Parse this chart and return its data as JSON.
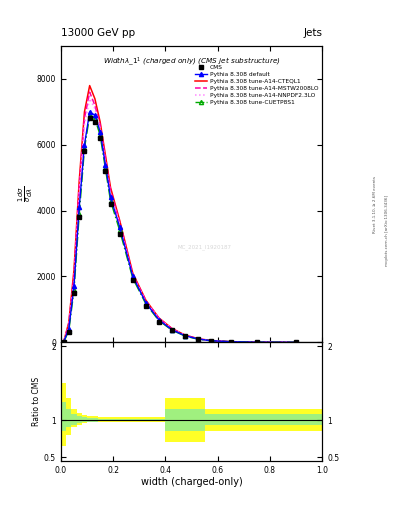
{
  "title_top": "13000 GeV pp",
  "title_right": "Jets",
  "plot_title": "Width$\\lambda$_1$^1$ (charged only) (CMS jet substructure)",
  "xlabel": "width (charged-only)",
  "ylabel_ratio": "Ratio to CMS",
  "cms_label": "CMS",
  "legend_labels": [
    "CMS",
    "Pythia 8.308 default",
    "Pythia 8.308 tune-A14-CTEQL1",
    "Pythia 8.308 tune-A14-MSTW2008LO",
    "Pythia 8.308 tune-A14-NNPDF2.3LO",
    "Pythia 8.308 tune-CUETP8S1"
  ],
  "colors": [
    "black",
    "blue",
    "red",
    "#ff00aa",
    "#ff88ff",
    "#00aa00"
  ],
  "line_styles": [
    "none",
    "-",
    "-",
    "--",
    ":",
    "-."
  ],
  "markers": [
    "s",
    "^",
    "none",
    "none",
    "none",
    "^"
  ],
  "x_bins": [
    0.0,
    0.02,
    0.04,
    0.06,
    0.08,
    0.1,
    0.12,
    0.14,
    0.16,
    0.18,
    0.2,
    0.25,
    0.3,
    0.35,
    0.4,
    0.45,
    0.5,
    0.55,
    0.6,
    0.7,
    0.8,
    1.0
  ],
  "cms_y": [
    0,
    300,
    1500,
    3800,
    5800,
    6800,
    6700,
    6200,
    5200,
    4200,
    3300,
    1900,
    1100,
    620,
    360,
    180,
    90,
    40,
    15,
    3,
    0.5
  ],
  "default_y": [
    0,
    400,
    1700,
    4100,
    6000,
    7000,
    6900,
    6400,
    5400,
    4400,
    3500,
    2000,
    1200,
    680,
    380,
    200,
    100,
    48,
    18,
    4,
    0.8
  ],
  "cteql1_y": [
    0,
    600,
    2200,
    4900,
    7000,
    7800,
    7400,
    6700,
    5700,
    4700,
    3700,
    2100,
    1280,
    740,
    420,
    220,
    110,
    54,
    20,
    4.5,
    1.0
  ],
  "mstw_y": [
    0,
    550,
    2000,
    4700,
    6800,
    7600,
    7200,
    6600,
    5600,
    4600,
    3650,
    2060,
    1260,
    730,
    410,
    215,
    108,
    52,
    19,
    4.2,
    0.9
  ],
  "nnpdf_y": [
    0,
    500,
    1900,
    4500,
    6600,
    7400,
    7100,
    6500,
    5500,
    4500,
    3600,
    2030,
    1240,
    720,
    405,
    210,
    105,
    51,
    19,
    4.1,
    0.85
  ],
  "cuetp8s1_y": [
    0,
    350,
    1600,
    3900,
    5900,
    6900,
    6800,
    6300,
    5300,
    4300,
    3400,
    1950,
    1170,
    660,
    370,
    190,
    95,
    46,
    17,
    3.8,
    0.75
  ],
  "ratio_yellow_lo": [
    0.65,
    0.8,
    0.9,
    0.94,
    0.96,
    0.97,
    0.97,
    0.98,
    0.98,
    0.98,
    0.98,
    0.98,
    0.98,
    0.98,
    0.7,
    0.7,
    0.7,
    0.85,
    0.85,
    0.85,
    0.85
  ],
  "ratio_yellow_hi": [
    1.5,
    1.3,
    1.15,
    1.1,
    1.07,
    1.05,
    1.05,
    1.04,
    1.04,
    1.04,
    1.04,
    1.04,
    1.04,
    1.04,
    1.3,
    1.3,
    1.3,
    1.15,
    1.15,
    1.15,
    1.15
  ],
  "ratio_green_lo": [
    0.85,
    0.9,
    0.94,
    0.96,
    0.97,
    0.98,
    0.98,
    0.99,
    0.99,
    0.99,
    0.99,
    0.99,
    0.99,
    0.99,
    0.85,
    0.85,
    0.85,
    0.93,
    0.93,
    0.93,
    0.93
  ],
  "ratio_green_hi": [
    1.25,
    1.15,
    1.08,
    1.06,
    1.04,
    1.03,
    1.03,
    1.02,
    1.02,
    1.02,
    1.02,
    1.02,
    1.02,
    1.02,
    1.15,
    1.15,
    1.15,
    1.08,
    1.08,
    1.08,
    1.08
  ],
  "ylim_main": [
    0,
    9000
  ],
  "ylim_ratio": [
    0.45,
    2.05
  ],
  "yticks_main": [
    0,
    2000,
    4000,
    6000,
    8000
  ],
  "ytick_labels_main": [
    "0",
    "2000",
    "4000",
    "6000",
    "8000"
  ],
  "ratio_yticks": [
    0.5,
    1.0,
    2.0
  ],
  "ratio_ytick_labels": [
    "0.5",
    "1",
    "2"
  ],
  "watermark_text": "MC_2021_I1920187",
  "right_text1": "Rivet 3.1.10, ≥ 2.6M events",
  "right_text2": "mcplots.cern.ch [arXiv:1306.3436]",
  "background_color": "white"
}
